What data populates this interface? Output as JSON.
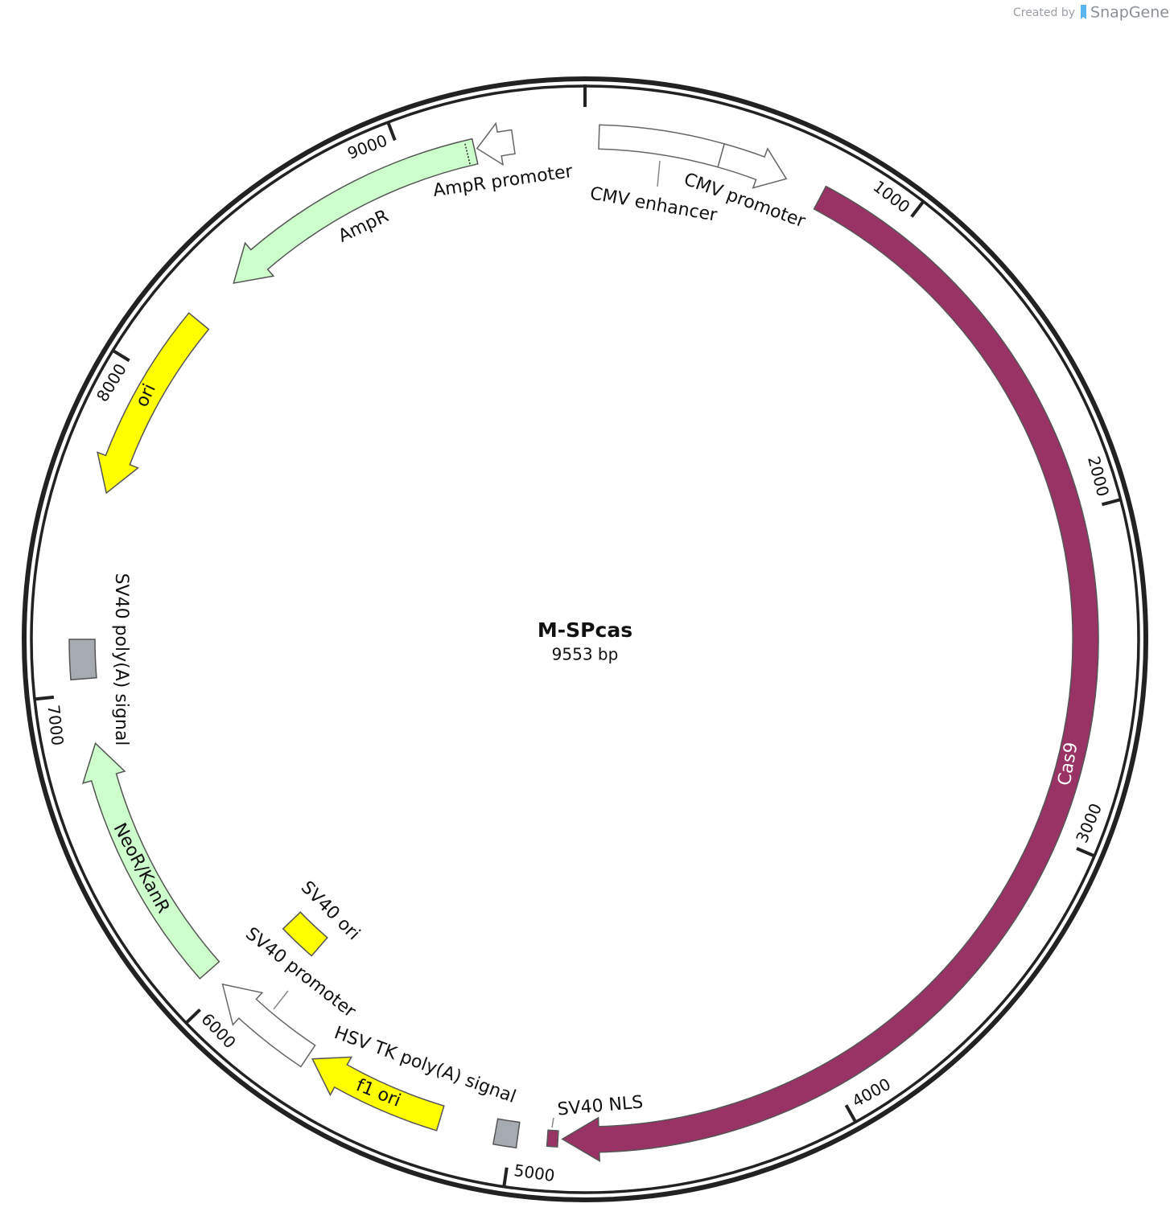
{
  "logo": {
    "prefix": "Created by",
    "brand": "SnapGene"
  },
  "plasmid": {
    "name": "M-SPcas",
    "size": "9553 bp",
    "tick_labels": [
      1000,
      2000,
      3000,
      4000,
      5000,
      6000,
      7000,
      8000,
      9000
    ],
    "features": [
      {
        "label": "CMV enhancer",
        "color": "#ffffff"
      },
      {
        "label": "CMV promoter",
        "color": "#ffffff"
      },
      {
        "label": "Cas9",
        "color": "#993366"
      },
      {
        "label": "SV40 NLS",
        "color": "#993366"
      },
      {
        "label": "HSV TK poly(A) signal",
        "color": "#a6abb2"
      },
      {
        "label": "f1 ori",
        "color": "#ffff00"
      },
      {
        "label": "SV40 promoter",
        "color": "#ffffff"
      },
      {
        "label": "SV40 ori",
        "color": "#ffff00"
      },
      {
        "label": "NeoR/KanR",
        "color": "#ccffcc"
      },
      {
        "label": "SV40 poly(A) signal",
        "color": "#a6abb2"
      },
      {
        "label": "ori",
        "color": "#ffff00"
      },
      {
        "label": "AmpR",
        "color": "#ccffcc"
      },
      {
        "label": "AmpR promoter",
        "color": "#ffffff"
      }
    ]
  }
}
